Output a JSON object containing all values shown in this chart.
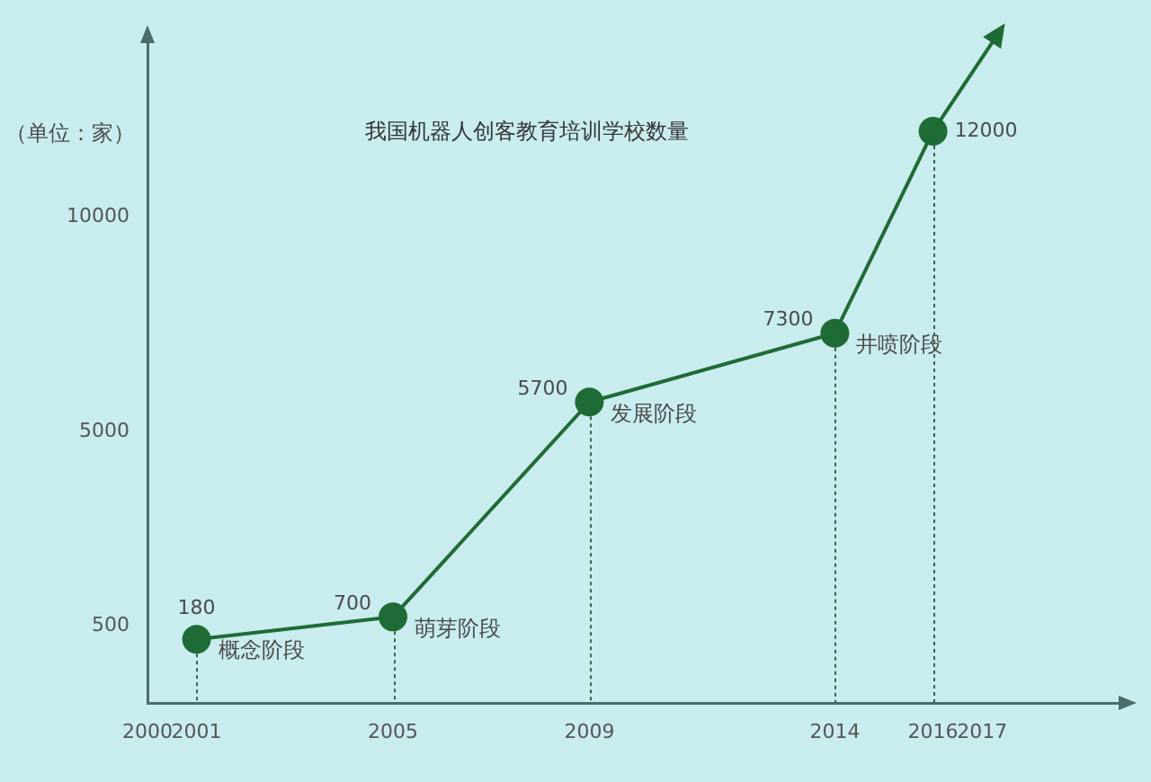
{
  "chart_data": {
    "type": "line",
    "title": "我国机器人创客教育培训学校数量",
    "ylabel": "（单位：家）",
    "x": [
      2001,
      2005,
      2009,
      2014,
      2016
    ],
    "values": [
      180,
      700,
      5700,
      7300,
      12000
    ],
    "color": "#1f6b35",
    "xlim": [
      2000,
      2020
    ],
    "ylim": [
      -1300,
      14300
    ],
    "xticks": [
      2000,
      2001,
      2005,
      2009,
      2014,
      2016,
      2017
    ],
    "yticks": [
      500,
      5000,
      10000
    ],
    "marker": "circle",
    "data_labels": true,
    "annotations": [
      {
        "text": "概念阶段",
        "x": 2001,
        "y": 180
      },
      {
        "text": "萌芽阶段",
        "x": 2005,
        "y": 700
      },
      {
        "text": "发展阶段",
        "x": 2009,
        "y": 5700
      },
      {
        "text": "井喷阶段",
        "x": 2014,
        "y": 7300
      }
    ]
  }
}
